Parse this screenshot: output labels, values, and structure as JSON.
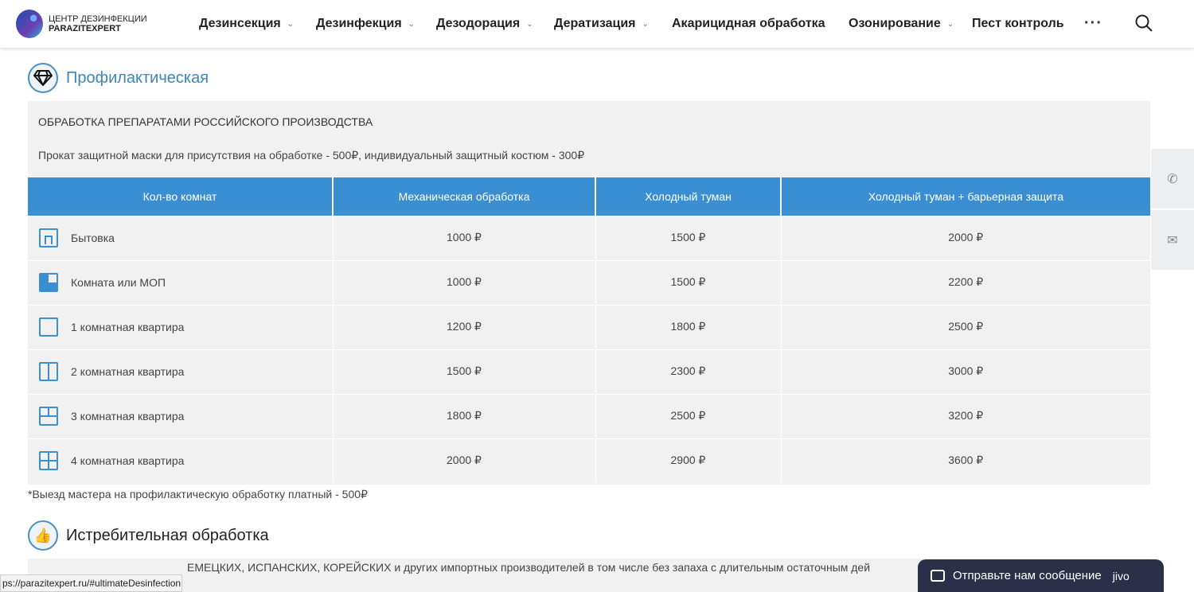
{
  "header": {
    "logo_line1": "ЦЕНТР ДЕЗИНФЕКЦИИ",
    "logo_line2": "PARAZITEXPERT",
    "nav": [
      {
        "label": "Дезинсекция",
        "dropdown": true
      },
      {
        "label": "Дезинфекция",
        "dropdown": true
      },
      {
        "label": "Дезодорация",
        "dropdown": true
      },
      {
        "label": "Дератизация",
        "dropdown": true
      },
      {
        "label": "Акарицидная обработка",
        "dropdown": false
      },
      {
        "label": "Озонирование",
        "dropdown": true
      },
      {
        "label": "Пест контроль",
        "dropdown": false
      }
    ],
    "more": "···"
  },
  "section1": {
    "title": "Профилактическая",
    "line1": "ОБРАБОТКА ПРЕПАРАТАМИ РОССИЙСКОГО ПРОИЗВОДСТВА",
    "line2": "Прокат защитной маски для присутствия на обработке - 500₽, индивидуальный защитный костюм - 300₽",
    "table": {
      "headers": [
        "Кол-во комнат",
        "Механическая обработка",
        "Холодный туман",
        "Холодный туман + барьерная защита"
      ],
      "rows": [
        {
          "name": "Бытовка",
          "icon": "room-small-icon",
          "values": [
            "1000 ₽",
            "1500 ₽",
            "2000 ₽"
          ]
        },
        {
          "name": "Комната или МОП",
          "icon": "room-quarter-icon",
          "values": [
            "1000 ₽",
            "1500 ₽",
            "2200 ₽"
          ]
        },
        {
          "name": "1 комнатная квартира",
          "icon": "one-room-icon",
          "values": [
            "1200 ₽",
            "1800 ₽",
            "2500 ₽"
          ]
        },
        {
          "name": "2 комнатная квартира",
          "icon": "two-room-icon",
          "values": [
            "1500 ₽",
            "2300 ₽",
            "3000 ₽"
          ]
        },
        {
          "name": "3 комнатная квартира",
          "icon": "three-room-icon",
          "values": [
            "1800 ₽",
            "2500 ₽",
            "3200 ₽"
          ]
        },
        {
          "name": "4 комнатная квартира",
          "icon": "four-room-icon",
          "values": [
            "2000 ₽",
            "2900 ₽",
            "3600 ₽"
          ]
        }
      ]
    },
    "note": "*Выезд мастера на профилактическую обработку платный - 500₽"
  },
  "section2": {
    "title": "Истребительная обработка",
    "line1_partial": "ЕМЕЦКИХ, ИСПАНСКИХ, КОРЕЙСКИХ и других импортных производителей в том числе без запаха с длительным остаточным дей"
  },
  "status_url": "ps://parazitexpert.ru/#ultimateDesinfection",
  "chat": {
    "label": "Отправьте нам сообщение",
    "brand": "jivo"
  },
  "colors": {
    "accent": "#3a8fd3",
    "title": "#3d86b8",
    "chat_bg": "#2b3048",
    "box_bg": "#f1f1f1"
  }
}
